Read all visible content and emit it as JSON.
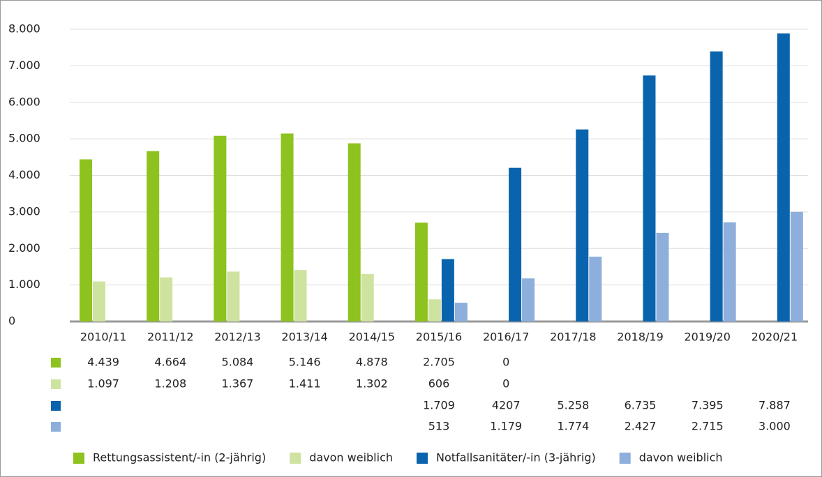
{
  "chart_data": {
    "type": "bar",
    "categories": [
      "2010/11",
      "2011/12",
      "2012/13",
      "2013/14",
      "2014/15",
      "2015/16",
      "2016/17",
      "2017/18",
      "2018/19",
      "2019/20",
      "2020/21"
    ],
    "series": [
      {
        "name": "Rettungsassistent/-in (2-jährig)",
        "color": "#8dc21f",
        "values": [
          4439,
          4664,
          5084,
          5146,
          4878,
          2705,
          0,
          null,
          null,
          null,
          null
        ],
        "value_labels": [
          "4.439",
          "4.664",
          "5.084",
          "5.146",
          "4.878",
          "2.705",
          "0",
          null,
          null,
          null,
          null
        ]
      },
      {
        "name": "davon weiblich",
        "color": "#cfe3a0",
        "values": [
          1097,
          1208,
          1367,
          1411,
          1302,
          606,
          0,
          null,
          null,
          null,
          null
        ],
        "value_labels": [
          "1.097",
          "1.208",
          "1.367",
          "1.411",
          "1.302",
          "606",
          "0",
          null,
          null,
          null,
          null
        ]
      },
      {
        "name": "Notfallsanitäter/-in (3-jährig)",
        "color": "#0a64ad",
        "values": [
          null,
          null,
          null,
          null,
          null,
          1709,
          4207,
          5258,
          6735,
          7395,
          7887
        ],
        "value_labels": [
          null,
          null,
          null,
          null,
          null,
          "1.709",
          "4207",
          "5.258",
          "6.735",
          "7.395",
          "7.887"
        ]
      },
      {
        "name": "davon weiblich",
        "color": "#8eaedc",
        "values": [
          null,
          null,
          null,
          null,
          null,
          513,
          1179,
          1774,
          2427,
          2715,
          3000
        ],
        "value_labels": [
          null,
          null,
          null,
          null,
          null,
          "513",
          "1.179",
          "1.774",
          "2.427",
          "2.715",
          "3.000"
        ]
      }
    ],
    "ylim": [
      0,
      8000
    ],
    "yticks": [
      0,
      {
        "value": 1000,
        "label": "1.000"
      },
      {
        "value": 2000,
        "label": "2.000"
      },
      {
        "value": 3000,
        "label": "3.000"
      },
      {
        "value": 4000,
        "label": "4.000"
      },
      {
        "value": 5000,
        "label": "5.000"
      },
      {
        "value": 6000,
        "label": "6.000"
      },
      {
        "value": 7000,
        "label": "7.000"
      },
      {
        "value": 8000,
        "label": "8.000"
      }
    ],
    "grid": true
  }
}
